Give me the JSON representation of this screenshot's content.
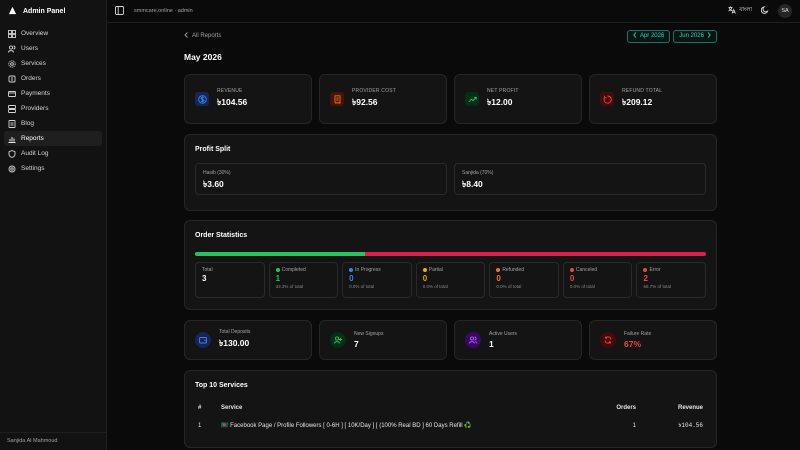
{
  "brand": {
    "title": "Admin Panel"
  },
  "nav": {
    "items": [
      {
        "label": "Overview",
        "icon": "grid-icon"
      },
      {
        "label": "Users",
        "icon": "users-icon"
      },
      {
        "label": "Services",
        "icon": "gear-icon"
      },
      {
        "label": "Orders",
        "icon": "cart-icon"
      },
      {
        "label": "Payments",
        "icon": "card-icon"
      },
      {
        "label": "Providers",
        "icon": "server-icon"
      },
      {
        "label": "Blog",
        "icon": "document-icon"
      },
      {
        "label": "Reports",
        "icon": "chart-icon",
        "active": true
      },
      {
        "label": "Audit Log",
        "icon": "shield-icon"
      },
      {
        "label": "Settings",
        "icon": "settings-icon"
      }
    ],
    "footer_user": "Sanjida Al Mahmoud"
  },
  "topbar": {
    "breadcrumb": "smmcare.online · admin",
    "language": "বাংলা",
    "avatar": "SA"
  },
  "page": {
    "back_label": "All Reports",
    "prev_month": "Apr 2026",
    "next_month": "Jun 2026",
    "title": "May 2026"
  },
  "stats": [
    {
      "label": "REVENUE",
      "value": "৳104.56",
      "icon": "dollar-icon",
      "color": "#3b82f6"
    },
    {
      "label": "PROVIDER COST",
      "value": "৳92.56",
      "icon": "receipt-icon",
      "color": "#f97316"
    },
    {
      "label": "NET PROFIT",
      "value": "৳12.00",
      "icon": "trend-up-icon",
      "color": "#22c55e"
    },
    {
      "label": "REFUND TOTAL",
      "value": "৳209.12",
      "icon": "refund-icon",
      "color": "#ef4444"
    }
  ],
  "profit_split": {
    "title": "Profit Split",
    "items": [
      {
        "label": "Hasib (30%)",
        "value": "৳3.60"
      },
      {
        "label": "Sanjida (70%)",
        "value": "৳8.40"
      }
    ]
  },
  "order_statistics": {
    "title": "Order Statistics",
    "bar": [
      {
        "share": 0.333,
        "color": "#22c55e"
      },
      {
        "share": 0.667,
        "color": "#e11d48"
      }
    ],
    "items": [
      {
        "label": "Total",
        "value": "3",
        "pct": "",
        "dot": "",
        "color": "#ffffff"
      },
      {
        "label": "Completed",
        "value": "1",
        "pct": "33.3% of total",
        "dot": "#22c55e",
        "color": "#22c55e"
      },
      {
        "label": "In Progress",
        "value": "0",
        "pct": "0.0% of total",
        "dot": "#3b82f6",
        "color": "#3b82f6"
      },
      {
        "label": "Partial",
        "value": "0",
        "pct": "0.0% of total",
        "dot": "#eab308",
        "color": "#f59e0b"
      },
      {
        "label": "Refunded",
        "value": "0",
        "pct": "0.0% of total",
        "dot": "#f97316",
        "color": "#f97316"
      },
      {
        "label": "Canceled",
        "value": "0",
        "pct": "0.0% of total",
        "dot": "#ef4444",
        "color": "#ef4444"
      },
      {
        "label": "Error",
        "value": "2",
        "pct": "66.7% of total",
        "dot": "#ef4444",
        "color": "#ef4444"
      }
    ]
  },
  "stats2": [
    {
      "label": "Total Deposits",
      "value": "৳130.00",
      "icon": "wallet-icon",
      "color": "#3b82f6",
      "value_color": "#ffffff"
    },
    {
      "label": "New Signups",
      "value": "7",
      "icon": "user-plus-icon",
      "color": "#22c55e",
      "value_color": "#ffffff"
    },
    {
      "label": "Active Users",
      "value": "1",
      "icon": "users-icon",
      "color": "#a855f7",
      "value_color": "#ffffff"
    },
    {
      "label": "Failure Rate",
      "value": "67%",
      "icon": "refresh-icon",
      "color": "#ef4444",
      "value_color": "#ef4444"
    }
  ],
  "top_services": {
    "title": "Top 10 Services",
    "headers": {
      "rank": "#",
      "service": "Service",
      "orders": "Orders",
      "revenue": "Revenue"
    },
    "rows": [
      {
        "rank": "1",
        "service": "🇧🇩 Facebook Page / Profile Followers [ 0-6H ] [ 10K/Day ] [ (100% Real BD ] 60 Days Refill ♻️",
        "orders": "1",
        "revenue": "৳104.56"
      }
    ]
  }
}
